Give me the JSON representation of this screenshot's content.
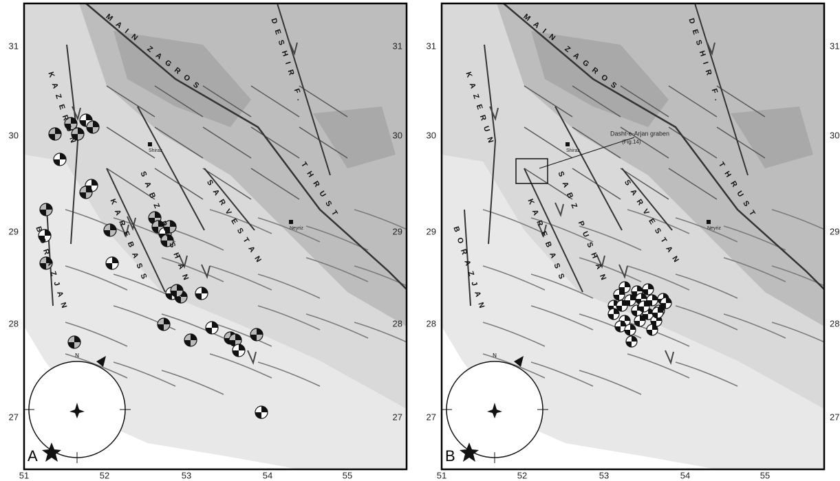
{
  "panels": [
    {
      "label": "A",
      "lat_labels": [
        31,
        30,
        29,
        28,
        27
      ],
      "lon_labels": [
        51,
        52,
        53,
        54,
        55
      ],
      "faults": {
        "main_zagros": "MAIN ZAGROS",
        "deshir": "DESHIR F.",
        "thrust": "THRUST",
        "kazerun": "KAZERUN",
        "borazjan": "BORAZJAN",
        "karebass": "KAREBASS",
        "sabz_pushan": "SABZ PUSHAN",
        "sarvestan": "SARVESTAN"
      },
      "places": [
        "Shiraz",
        "Neyriz"
      ],
      "stereonet_north": "N"
    },
    {
      "label": "B",
      "lat_labels": [
        31,
        30,
        29,
        28,
        27
      ],
      "lon_labels": [
        51,
        52,
        53,
        54,
        55
      ],
      "faults": {
        "main_zagros": "MAIN ZAGROS",
        "deshir": "DESHIR F.",
        "thrust": "THRUST",
        "kazerun": "KAZERUN",
        "borazjan": "BORAZJAN",
        "karebass": "KAREBASS",
        "sabz_pushan": "SABZ PUSHAN",
        "sarvestan": "SARVESTAN"
      },
      "places": [
        "Shiraz",
        "Neyriz"
      ],
      "stereonet_north": "N",
      "annotation": {
        "title": "Dasht-e-Arjan graben",
        "ref": "(Fig.14)"
      }
    }
  ]
}
